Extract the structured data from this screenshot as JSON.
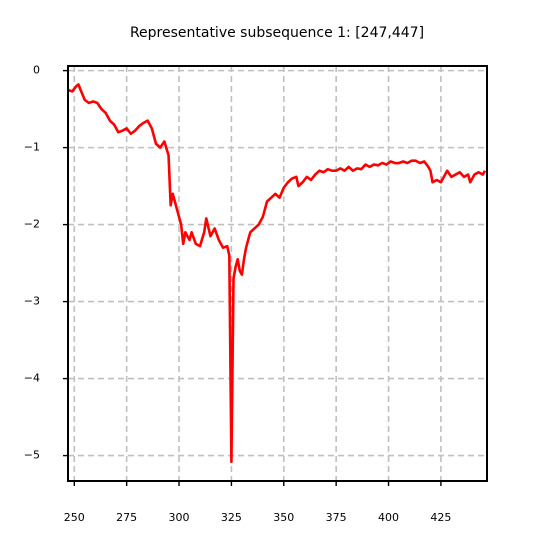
{
  "chart_data": {
    "type": "line",
    "title": "Representative subsequence 1: [247,447]",
    "x": [
      247,
      249,
      251,
      252,
      253,
      255,
      257,
      259,
      261,
      263,
      265,
      267,
      269,
      271,
      273,
      275,
      277,
      279,
      281,
      283,
      285,
      287,
      289,
      291,
      293,
      295,
      296,
      297,
      298,
      299,
      301,
      302,
      303,
      305,
      306,
      308,
      310,
      312,
      313,
      315,
      317,
      319,
      321,
      323,
      324,
      325,
      326,
      327,
      328,
      329,
      330,
      331,
      332,
      333,
      334,
      336,
      338,
      340,
      342,
      344,
      346,
      348,
      350,
      352,
      354,
      356,
      357,
      359,
      361,
      363,
      365,
      367,
      369,
      371,
      373,
      375,
      377,
      379,
      381,
      383,
      385,
      387,
      389,
      391,
      393,
      395,
      397,
      399,
      401,
      403,
      405,
      407,
      409,
      411,
      413,
      415,
      417,
      419,
      420,
      421,
      423,
      425,
      427,
      428,
      430,
      432,
      434,
      436,
      438,
      439,
      441,
      443,
      445,
      446
    ],
    "series": [
      {
        "color": "#ff0000",
        "values": [
          -0.25,
          -0.27,
          -0.2,
          -0.18,
          -0.25,
          -0.38,
          -0.42,
          -0.4,
          -0.42,
          -0.5,
          -0.55,
          -0.65,
          -0.7,
          -0.8,
          -0.78,
          -0.75,
          -0.82,
          -0.78,
          -0.72,
          -0.68,
          -0.65,
          -0.75,
          -0.95,
          -1.0,
          -0.92,
          -1.1,
          -1.75,
          -1.6,
          -1.7,
          -1.8,
          -2.0,
          -2.25,
          -2.1,
          -2.2,
          -2.1,
          -2.25,
          -2.28,
          -2.1,
          -1.92,
          -2.15,
          -2.05,
          -2.2,
          -2.3,
          -2.28,
          -2.4,
          -5.08,
          -2.7,
          -2.55,
          -2.45,
          -2.6,
          -2.65,
          -2.45,
          -2.3,
          -2.2,
          -2.1,
          -2.05,
          -2.0,
          -1.9,
          -1.7,
          -1.65,
          -1.6,
          -1.65,
          -1.52,
          -1.45,
          -1.4,
          -1.38,
          -1.5,
          -1.45,
          -1.38,
          -1.42,
          -1.35,
          -1.3,
          -1.32,
          -1.28,
          -1.3,
          -1.3,
          -1.27,
          -1.3,
          -1.25,
          -1.3,
          -1.27,
          -1.28,
          -1.22,
          -1.25,
          -1.22,
          -1.23,
          -1.2,
          -1.22,
          -1.18,
          -1.2,
          -1.2,
          -1.18,
          -1.2,
          -1.17,
          -1.17,
          -1.2,
          -1.18,
          -1.25,
          -1.3,
          -1.45,
          -1.42,
          -1.45,
          -1.35,
          -1.3,
          -1.38,
          -1.35,
          -1.32,
          -1.38,
          -1.35,
          -1.45,
          -1.35,
          -1.32,
          -1.35,
          -1.3
        ]
      }
    ],
    "xlim": [
      247,
      447
    ],
    "xticks": [
      250,
      275,
      300,
      325,
      350,
      375,
      400,
      425
    ],
    "ylim": [
      -5.33,
      0.06
    ],
    "yticks": [
      {
        "value": 0,
        "label": "0"
      },
      {
        "value": -1,
        "label": "−1"
      },
      {
        "value": -2,
        "label": "−2"
      },
      {
        "value": -3,
        "label": "−3"
      },
      {
        "value": -4,
        "label": "−4"
      },
      {
        "value": -5,
        "label": "−5"
      }
    ],
    "grid": true
  }
}
